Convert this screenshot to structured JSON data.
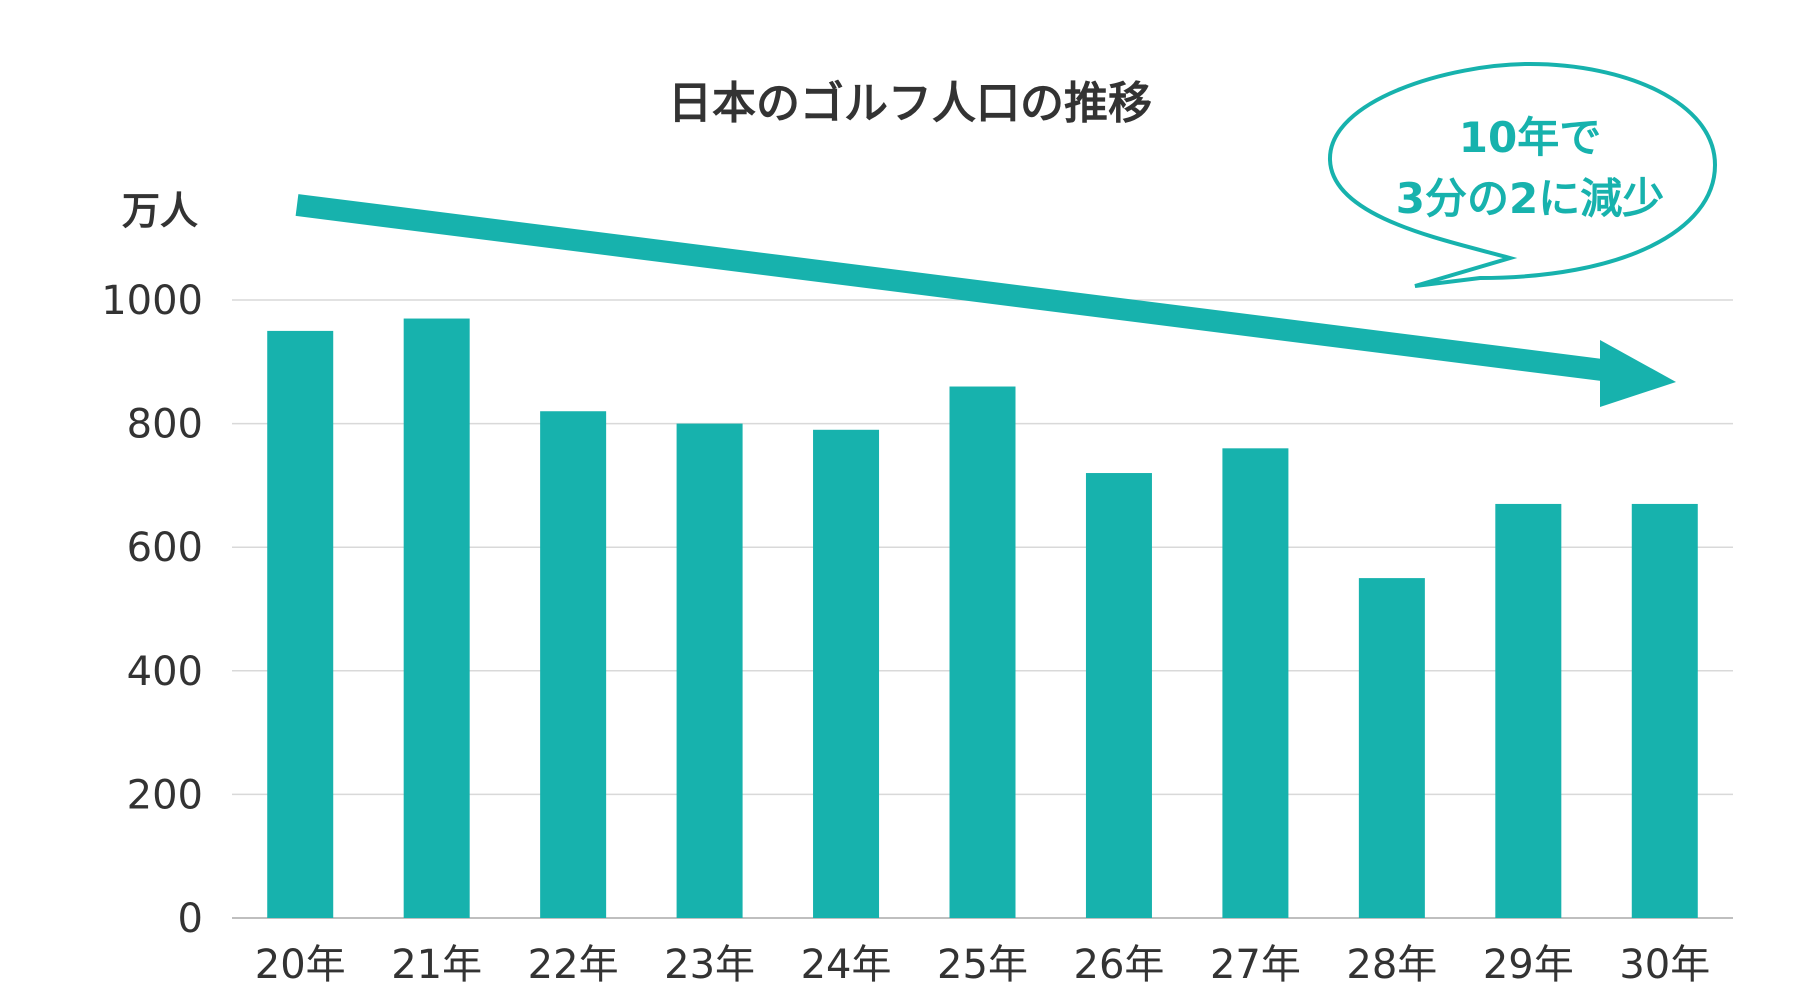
{
  "chart_data": {
    "type": "bar",
    "title": "日本のゴルフ人口の推移",
    "unit_label": "万人",
    "categories": [
      "20年",
      "21年",
      "22年",
      "23年",
      "24年",
      "25年",
      "26年",
      "27年",
      "28年",
      "29年",
      "30年"
    ],
    "values": [
      950,
      970,
      820,
      800,
      790,
      860,
      720,
      760,
      550,
      670,
      670
    ],
    "ylim": [
      0,
      1000
    ],
    "yticks": [
      "0",
      "200",
      "400",
      "600",
      "800",
      "1000"
    ],
    "grid": true,
    "bar_color": "#17b2ad",
    "arrow_color": "#17b2ad",
    "annotation": {
      "line1": "10年で",
      "line2": "3分の2に減少",
      "color": "#17b2ad"
    }
  }
}
